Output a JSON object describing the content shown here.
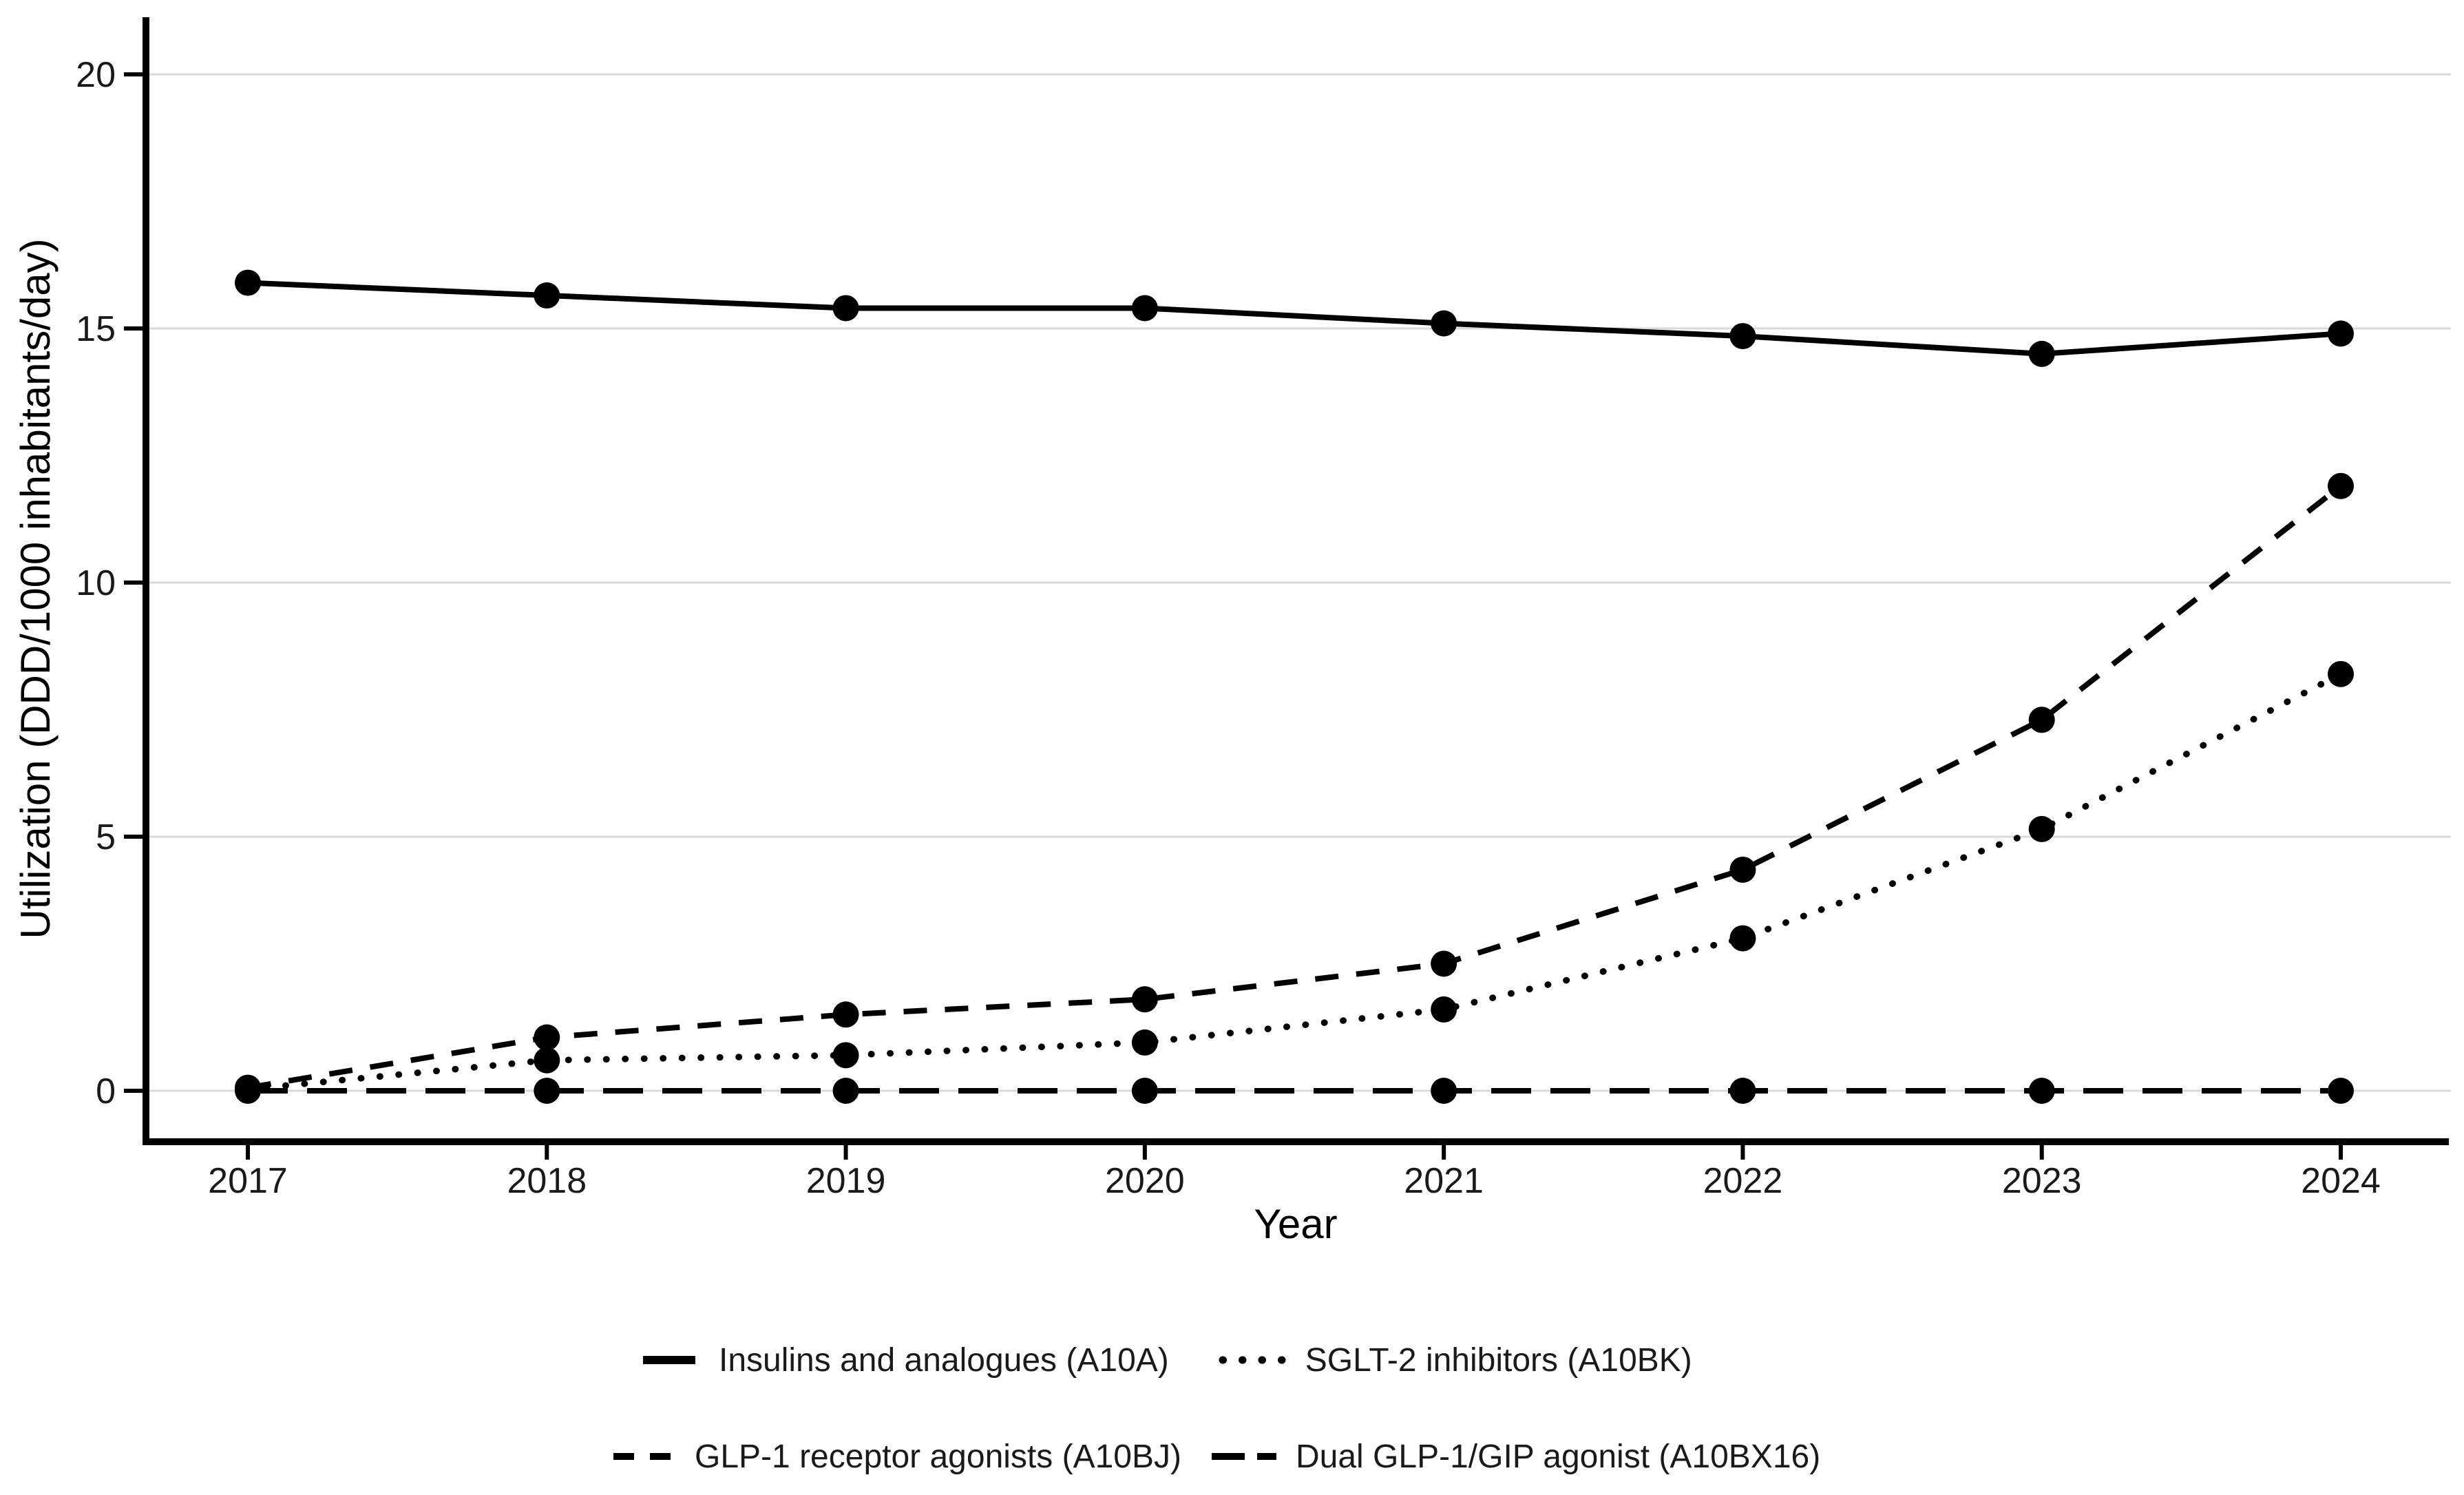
{
  "figure": {
    "background": "#ffffff",
    "axis_color": "#000000",
    "grid_color": "#d9d9d9",
    "text_color": "#1a1a1a",
    "series_color": "#000000"
  },
  "chart_data": {
    "type": "line",
    "title": "",
    "xlabel": "Year",
    "ylabel": "Utilization (DDD/1000 inhabitants/day)",
    "categories": [
      "2017",
      "2018",
      "2019",
      "2020",
      "2021",
      "2022",
      "2023",
      "2024"
    ],
    "y_ticks": [
      0,
      5,
      10,
      15,
      20
    ],
    "ylim": [
      0,
      21
    ],
    "grid": "horizontal-major-only",
    "legend_position": "bottom",
    "marker": "filled-circle",
    "series": [
      {
        "name": "Insulins and analogues (A10A)",
        "line_style": "solid",
        "color": "#000000",
        "values": [
          15.9,
          15.65,
          15.4,
          15.4,
          15.1,
          14.85,
          14.5,
          14.9
        ]
      },
      {
        "name": "SGLT-2 inhibitors (A10BK)",
        "line_style": "dotted",
        "color": "#000000",
        "values": [
          0.03,
          0.6,
          0.7,
          0.95,
          1.6,
          3.0,
          5.15,
          8.2
        ]
      },
      {
        "name": "GLP-1 receptor agonists (A10BJ)",
        "line_style": "dashed",
        "color": "#000000",
        "values": [
          0.06,
          1.05,
          1.5,
          1.8,
          2.5,
          4.35,
          7.3,
          11.9
        ]
      },
      {
        "name": "Dual GLP-1/GIP agonist (A10BX16)",
        "line_style": "longdash",
        "color": "#000000",
        "values": [
          0,
          0,
          0,
          0,
          0,
          0,
          0,
          0
        ]
      }
    ]
  }
}
